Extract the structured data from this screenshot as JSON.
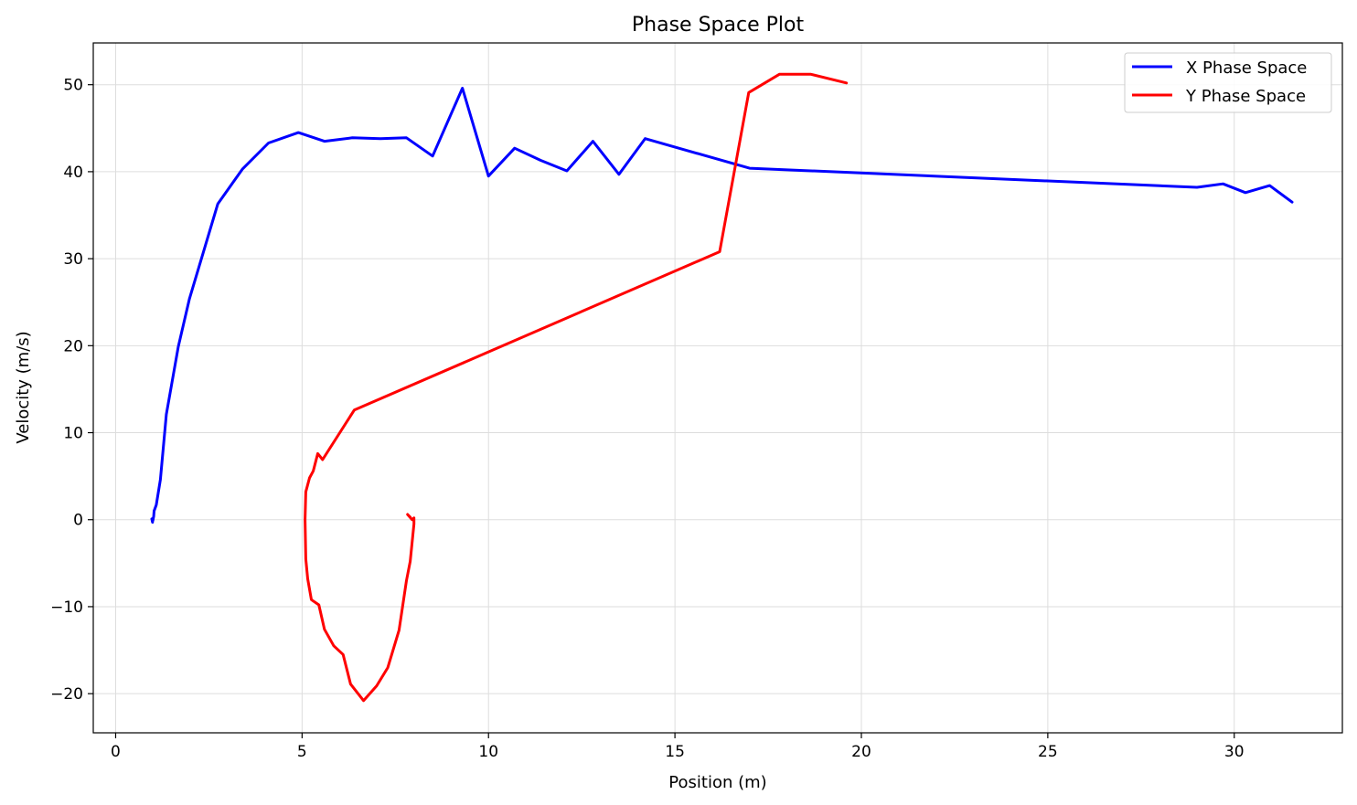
{
  "chart_data": {
    "type": "line",
    "title": "Phase Space Plot",
    "xlabel": "Position (m)",
    "ylabel": "Velocity (m/s)",
    "xlim": [
      -0.6,
      32.9
    ],
    "ylim": [
      -24.5,
      54.8
    ],
    "xticks": [
      0,
      5,
      10,
      15,
      20,
      25,
      30
    ],
    "yticks": [
      -20,
      -10,
      0,
      10,
      20,
      30,
      40,
      50
    ],
    "xtick_labels": [
      "0",
      "5",
      "10",
      "15",
      "20",
      "25",
      "30"
    ],
    "ytick_labels": [
      "−20",
      "−10",
      "0",
      "10",
      "20",
      "30",
      "40",
      "50"
    ],
    "grid": true,
    "legend_position": "top-right",
    "series": [
      {
        "name": "X Phase Space",
        "color": "#0000ff",
        "points": [
          [
            0.99,
            -0.3
          ],
          [
            0.97,
            0.1
          ],
          [
            1.0,
            -0.1
          ],
          [
            1.02,
            0.4
          ],
          [
            1.03,
            1.0
          ],
          [
            1.09,
            1.7
          ],
          [
            1.2,
            4.6
          ],
          [
            1.36,
            12.1
          ],
          [
            1.68,
            19.9
          ],
          [
            1.98,
            25.4
          ],
          [
            2.74,
            36.3
          ],
          [
            3.4,
            40.3
          ],
          [
            4.1,
            43.3
          ],
          [
            4.9,
            44.5
          ],
          [
            5.6,
            43.5
          ],
          [
            6.35,
            43.9
          ],
          [
            7.1,
            43.8
          ],
          [
            7.8,
            43.9
          ],
          [
            8.5,
            41.8
          ],
          [
            9.3,
            49.6
          ],
          [
            10.0,
            39.5
          ],
          [
            10.7,
            42.7
          ],
          [
            11.4,
            41.3
          ],
          [
            12.1,
            40.1
          ],
          [
            12.8,
            43.5
          ],
          [
            13.5,
            39.7
          ],
          [
            14.2,
            43.8
          ],
          [
            17.0,
            40.4
          ],
          [
            29.0,
            38.2
          ],
          [
            29.7,
            38.6
          ],
          [
            30.3,
            37.6
          ],
          [
            30.95,
            38.4
          ],
          [
            31.55,
            36.5
          ]
        ]
      },
      {
        "name": "Y Phase Space",
        "color": "#ff0000",
        "points": [
          [
            7.9,
            0.3
          ],
          [
            7.83,
            0.6
          ],
          [
            7.95,
            0.0
          ],
          [
            8.0,
            0.2
          ],
          [
            8.0,
            -0.5
          ],
          [
            7.9,
            -4.8
          ],
          [
            7.8,
            -7.0
          ],
          [
            7.6,
            -12.7
          ],
          [
            7.3,
            -17.0
          ],
          [
            7.0,
            -19.1
          ],
          [
            6.65,
            -20.8
          ],
          [
            6.3,
            -18.9
          ],
          [
            6.1,
            -15.5
          ],
          [
            5.85,
            -14.5
          ],
          [
            5.6,
            -12.6
          ],
          [
            5.45,
            -9.8
          ],
          [
            5.25,
            -9.2
          ],
          [
            5.15,
            -6.8
          ],
          [
            5.1,
            -4.5
          ],
          [
            5.08,
            0.0
          ],
          [
            5.1,
            3.2
          ],
          [
            5.2,
            4.8
          ],
          [
            5.3,
            5.6
          ],
          [
            5.42,
            7.6
          ],
          [
            5.55,
            6.9
          ],
          [
            6.4,
            12.6
          ],
          [
            16.2,
            30.8
          ],
          [
            16.98,
            49.1
          ],
          [
            17.8,
            51.2
          ],
          [
            18.65,
            51.2
          ],
          [
            19.6,
            50.2
          ]
        ]
      }
    ]
  }
}
